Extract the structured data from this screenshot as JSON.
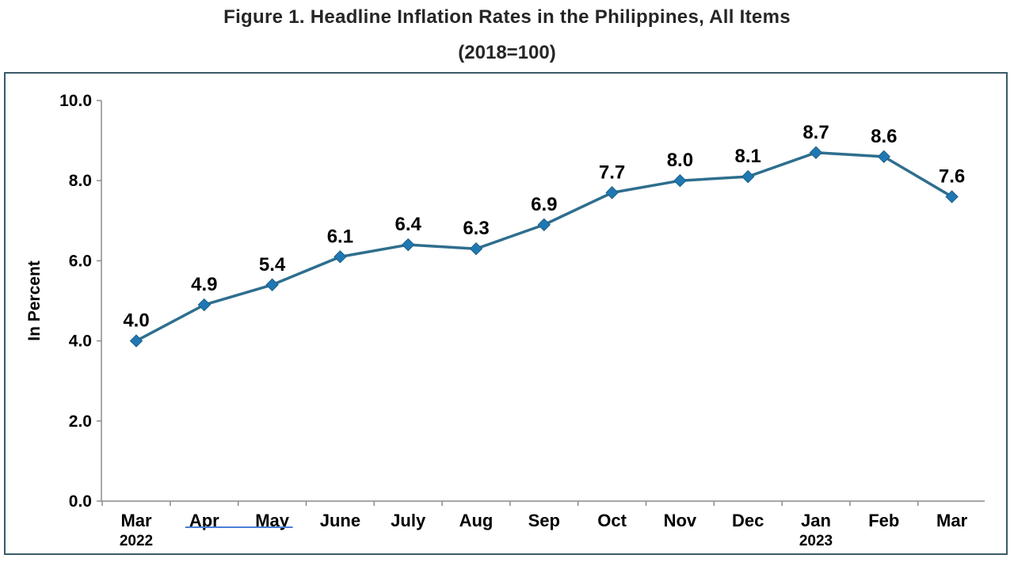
{
  "chart_data": {
    "type": "line",
    "title": "Figure 1. Headline Inflation Rates in the Philippines, All Items",
    "subtitle": "(2018=100)",
    "ylabel": "In Percent",
    "xlabel": "",
    "ylim": [
      0,
      10
    ],
    "yticks": [
      "0.0",
      "2.0",
      "4.0",
      "6.0",
      "8.0",
      "10.0"
    ],
    "categories": [
      "Mar",
      "Apr",
      "May",
      "June",
      "July",
      "Aug",
      "Sep",
      "Oct",
      "Nov",
      "Dec",
      "Jan",
      "Feb",
      "Mar"
    ],
    "year_labels": [
      {
        "index": 0,
        "text": "2022"
      },
      {
        "index": 10,
        "text": "2023"
      }
    ],
    "series": [
      {
        "values": [
          4.0,
          4.9,
          5.4,
          6.1,
          6.4,
          6.3,
          6.9,
          7.7,
          8.0,
          8.1,
          8.7,
          8.6,
          7.6
        ],
        "labels": [
          "4.0",
          "4.9",
          "5.4",
          "6.1",
          "6.4",
          "6.3",
          "6.9",
          "7.7",
          "8.0",
          "8.1",
          "8.7",
          "8.6",
          "7.6"
        ],
        "color": "#2e6e8e",
        "marker_color": "#1f78b4"
      }
    ],
    "grid": false,
    "legend": "none",
    "underline_color": "#4a7fd6"
  }
}
